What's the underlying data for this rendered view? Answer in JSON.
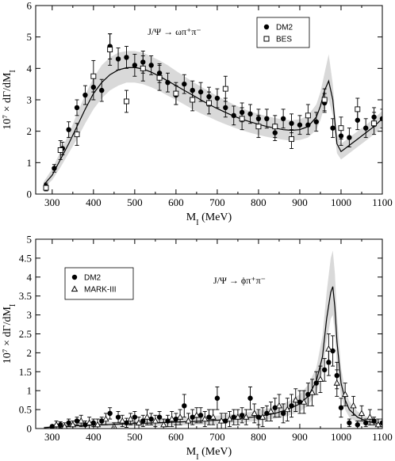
{
  "chart_data": [
    {
      "type": "scatter",
      "annotation": "J/Ψ → ωπ⁺π⁻",
      "xlabel": "M_I (MeV)",
      "ylabel": "10⁷ × dΓ/dM_I",
      "xlim": [
        260,
        1100
      ],
      "ylim": [
        0,
        6
      ],
      "xticks": [
        300,
        400,
        500,
        600,
        700,
        800,
        900,
        1000,
        1100
      ],
      "yticks": [
        0,
        1,
        2,
        3,
        4,
        5,
        6
      ],
      "legend_position": "top-right",
      "series": [
        {
          "name": "DM2",
          "marker": "filled-circle",
          "x": [
            285,
            305,
            325,
            340,
            360,
            380,
            400,
            420,
            440,
            460,
            480,
            500,
            520,
            540,
            560,
            580,
            600,
            620,
            640,
            660,
            680,
            700,
            720,
            740,
            760,
            780,
            800,
            820,
            840,
            860,
            880,
            900,
            920,
            940,
            960,
            980,
            1000,
            1020,
            1040,
            1060,
            1080,
            1100
          ],
          "y": [
            0.25,
            0.82,
            1.45,
            2.05,
            2.75,
            3.15,
            3.4,
            3.3,
            4.7,
            4.3,
            4.35,
            4.1,
            4.2,
            4.1,
            3.85,
            3.55,
            3.15,
            3.5,
            3.3,
            3.25,
            3.1,
            3.05,
            2.75,
            2.5,
            2.6,
            2.55,
            2.4,
            2.4,
            1.95,
            2.4,
            2.25,
            2.2,
            2.2,
            2.3,
            2.9,
            2.1,
            1.85,
            1.8,
            2.35,
            2.1,
            2.45,
            2.4
          ],
          "err": [
            0.1,
            0.12,
            0.2,
            0.25,
            0.25,
            0.3,
            0.4,
            0.35,
            0.4,
            0.35,
            0.35,
            0.35,
            0.35,
            0.3,
            0.3,
            0.3,
            0.3,
            0.3,
            0.3,
            0.3,
            0.3,
            0.3,
            0.3,
            0.3,
            0.3,
            0.3,
            0.3,
            0.3,
            0.25,
            0.3,
            0.3,
            0.3,
            0.3,
            0.3,
            0.3,
            0.3,
            0.3,
            0.3,
            0.3,
            0.3,
            0.3,
            0.3
          ]
        },
        {
          "name": "BES",
          "marker": "open-square",
          "x": [
            285,
            320,
            360,
            400,
            440,
            480,
            520,
            560,
            600,
            640,
            680,
            720,
            760,
            800,
            840,
            880,
            920,
            960,
            1000,
            1040,
            1080
          ],
          "y": [
            0.2,
            1.4,
            1.9,
            3.75,
            4.6,
            2.95,
            4.0,
            3.7,
            3.2,
            3.0,
            2.9,
            3.35,
            2.4,
            2.15,
            2.15,
            1.75,
            2.5,
            3.0,
            2.1,
            2.7,
            2.25
          ],
          "err": [
            0.1,
            0.3,
            0.35,
            0.5,
            0.5,
            0.35,
            0.4,
            0.4,
            0.35,
            0.35,
            0.35,
            0.4,
            0.35,
            0.35,
            0.35,
            0.3,
            0.35,
            0.35,
            0.35,
            0.35,
            0.35
          ]
        },
        {
          "name": "theory",
          "kind": "line",
          "x": [
            280,
            300,
            320,
            340,
            360,
            380,
            400,
            420,
            440,
            460,
            480,
            500,
            520,
            540,
            560,
            580,
            600,
            620,
            640,
            660,
            680,
            700,
            720,
            740,
            760,
            780,
            800,
            820,
            840,
            860,
            880,
            900,
            920,
            940,
            950,
            960,
            970,
            980,
            985,
            990,
            1000,
            1020,
            1040,
            1060,
            1080,
            1100
          ],
          "y": [
            0.3,
            0.6,
            1.1,
            1.6,
            2.15,
            2.7,
            3.2,
            3.55,
            3.8,
            3.95,
            4.02,
            4.03,
            3.98,
            3.88,
            3.75,
            3.6,
            3.45,
            3.3,
            3.15,
            3.0,
            2.85,
            2.72,
            2.6,
            2.48,
            2.38,
            2.3,
            2.22,
            2.15,
            2.1,
            2.05,
            2.03,
            2.05,
            2.15,
            2.45,
            2.8,
            3.3,
            3.6,
            3.0,
            2.3,
            1.6,
            1.35,
            1.55,
            1.75,
            1.95,
            2.15,
            2.4
          ]
        },
        {
          "name": "theory-band",
          "kind": "band",
          "x": [
            280,
            300,
            320,
            340,
            360,
            380,
            400,
            420,
            440,
            460,
            480,
            500,
            520,
            540,
            560,
            580,
            600,
            620,
            640,
            660,
            680,
            700,
            720,
            740,
            760,
            780,
            800,
            820,
            840,
            860,
            880,
            900,
            920,
            940,
            950,
            960,
            970,
            980,
            985,
            990,
            1000,
            1020,
            1040,
            1060,
            1080,
            1100
          ],
          "low": [
            0.2,
            0.45,
            0.85,
            1.3,
            1.75,
            2.25,
            2.7,
            3.05,
            3.3,
            3.45,
            3.55,
            3.55,
            3.5,
            3.4,
            3.28,
            3.13,
            3.0,
            2.85,
            2.7,
            2.57,
            2.45,
            2.33,
            2.22,
            2.12,
            2.03,
            1.95,
            1.88,
            1.82,
            1.77,
            1.73,
            1.7,
            1.72,
            1.8,
            2.05,
            2.35,
            2.8,
            3.0,
            2.5,
            1.9,
            1.3,
            1.1,
            1.3,
            1.5,
            1.7,
            1.9,
            2.15
          ],
          "high": [
            0.4,
            0.8,
            1.35,
            1.9,
            2.55,
            3.15,
            3.7,
            4.1,
            4.35,
            4.5,
            4.55,
            4.55,
            4.5,
            4.38,
            4.25,
            4.1,
            3.92,
            3.75,
            3.58,
            3.42,
            3.27,
            3.12,
            2.98,
            2.85,
            2.73,
            2.63,
            2.55,
            2.48,
            2.42,
            2.37,
            2.35,
            2.38,
            2.5,
            2.85,
            3.25,
            3.85,
            4.45,
            3.5,
            2.7,
            1.9,
            1.6,
            1.8,
            2.0,
            2.2,
            2.4,
            2.65
          ]
        }
      ]
    },
    {
      "type": "scatter",
      "annotation": "J/Ψ → ϕπ⁺π⁻",
      "xlabel": "M_I (MeV)",
      "ylabel": "10⁷ × dΓ/dM_I",
      "xlim": [
        260,
        1100
      ],
      "ylim": [
        0,
        5
      ],
      "xticks": [
        300,
        400,
        500,
        600,
        700,
        800,
        900,
        1000,
        1100
      ],
      "yticks": [
        0,
        0.5,
        1,
        1.5,
        2,
        2.5,
        3,
        3.5,
        4,
        4.5,
        5
      ],
      "legend_position": "top-left",
      "series": [
        {
          "name": "DM2",
          "marker": "filled-circle",
          "x": [
            300,
            320,
            340,
            360,
            380,
            400,
            420,
            440,
            460,
            480,
            500,
            520,
            540,
            560,
            580,
            600,
            620,
            640,
            660,
            680,
            700,
            720,
            740,
            760,
            780,
            800,
            820,
            840,
            860,
            880,
            900,
            920,
            940,
            960,
            970,
            980,
            990,
            1000,
            1020,
            1040,
            1060,
            1080,
            1100
          ],
          "y": [
            0.05,
            0.1,
            0.15,
            0.2,
            0.1,
            0.15,
            0.2,
            0.4,
            0.3,
            0.15,
            0.3,
            0.2,
            0.25,
            0.3,
            0.2,
            0.25,
            0.6,
            0.3,
            0.35,
            0.3,
            0.8,
            0.2,
            0.3,
            0.35,
            0.8,
            0.3,
            0.4,
            0.55,
            0.4,
            0.6,
            0.7,
            0.9,
            1.2,
            1.55,
            1.75,
            2.05,
            1.4,
            0.55,
            0.15,
            0.1,
            0.15,
            0.2,
            0.15
          ],
          "err": [
            0.05,
            0.08,
            0.1,
            0.1,
            0.1,
            0.1,
            0.1,
            0.15,
            0.15,
            0.12,
            0.15,
            0.15,
            0.15,
            0.15,
            0.15,
            0.15,
            0.3,
            0.2,
            0.2,
            0.2,
            0.3,
            0.2,
            0.2,
            0.2,
            0.3,
            0.2,
            0.2,
            0.25,
            0.25,
            0.3,
            0.3,
            0.3,
            0.3,
            0.3,
            0.35,
            0.4,
            0.35,
            0.25,
            0.1,
            0.1,
            0.1,
            0.1,
            0.1
          ]
        },
        {
          "name": "MARK-III",
          "marker": "open-triangle",
          "x": [
            310,
            330,
            350,
            370,
            390,
            410,
            430,
            450,
            470,
            490,
            510,
            530,
            550,
            570,
            590,
            610,
            630,
            650,
            670,
            690,
            710,
            730,
            750,
            770,
            790,
            810,
            830,
            850,
            870,
            890,
            910,
            930,
            950,
            970,
            990,
            1010,
            1030,
            1050,
            1070,
            1090
          ],
          "y": [
            0.1,
            0.05,
            0.1,
            0.2,
            0.15,
            0.1,
            0.25,
            0.05,
            0.2,
            0.25,
            0.15,
            0.3,
            0.2,
            0.1,
            0.25,
            0.3,
            0.2,
            0.35,
            0.25,
            0.3,
            0.2,
            0.25,
            0.3,
            0.3,
            0.4,
            0.3,
            0.45,
            0.6,
            0.5,
            0.75,
            0.7,
            0.95,
            1.3,
            2.1,
            1.2,
            0.9,
            0.6,
            0.4,
            0.3,
            0.1
          ],
          "err": [
            0.1,
            0.1,
            0.1,
            0.15,
            0.15,
            0.15,
            0.15,
            0.1,
            0.15,
            0.15,
            0.15,
            0.2,
            0.15,
            0.15,
            0.2,
            0.2,
            0.2,
            0.2,
            0.2,
            0.2,
            0.2,
            0.2,
            0.2,
            0.2,
            0.25,
            0.25,
            0.25,
            0.3,
            0.3,
            0.3,
            0.3,
            0.35,
            0.35,
            0.4,
            0.35,
            0.3,
            0.25,
            0.2,
            0.2,
            0.15
          ]
        },
        {
          "name": "theory",
          "kind": "line",
          "x": [
            280,
            300,
            350,
            400,
            450,
            500,
            550,
            600,
            650,
            700,
            750,
            800,
            840,
            870,
            900,
            920,
            940,
            955,
            965,
            975,
            980,
            985,
            990,
            1000,
            1010,
            1020,
            1040,
            1060,
            1080,
            1100
          ],
          "y": [
            0.02,
            0.04,
            0.07,
            0.09,
            0.11,
            0.13,
            0.15,
            0.17,
            0.19,
            0.22,
            0.26,
            0.32,
            0.4,
            0.5,
            0.65,
            0.85,
            1.25,
            1.9,
            2.9,
            3.6,
            3.75,
            3.2,
            2.3,
            1.2,
            0.75,
            0.5,
            0.3,
            0.2,
            0.15,
            0.12
          ]
        },
        {
          "name": "theory-band",
          "kind": "band",
          "x": [
            280,
            300,
            350,
            400,
            450,
            500,
            550,
            600,
            650,
            700,
            750,
            800,
            840,
            870,
            900,
            920,
            940,
            955,
            965,
            975,
            980,
            985,
            990,
            1000,
            1010,
            1020,
            1040,
            1060,
            1080,
            1100
          ],
          "low": [
            0.0,
            0.01,
            0.03,
            0.04,
            0.05,
            0.06,
            0.07,
            0.08,
            0.1,
            0.12,
            0.15,
            0.2,
            0.26,
            0.33,
            0.45,
            0.6,
            0.95,
            1.5,
            2.3,
            2.9,
            3.0,
            2.5,
            1.7,
            0.85,
            0.5,
            0.3,
            0.15,
            0.08,
            0.05,
            0.03
          ],
          "high": [
            0.05,
            0.08,
            0.12,
            0.15,
            0.18,
            0.21,
            0.24,
            0.27,
            0.3,
            0.34,
            0.39,
            0.47,
            0.57,
            0.7,
            0.9,
            1.15,
            1.6,
            2.45,
            3.6,
            4.5,
            4.7,
            4.1,
            3.0,
            1.6,
            1.0,
            0.72,
            0.45,
            0.32,
            0.25,
            0.2
          ]
        }
      ]
    }
  ]
}
